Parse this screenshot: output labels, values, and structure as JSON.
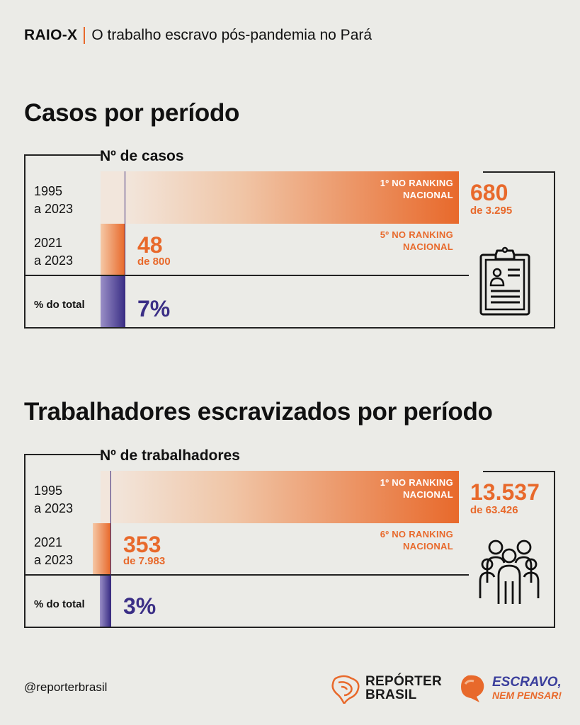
{
  "header": {
    "tag": "RAIO-X",
    "title": "O trabalho escravo pós-pandemia no Pará"
  },
  "colors": {
    "accent": "#e8692b",
    "purple": "#3b2f86",
    "background": "#ebebe7"
  },
  "sections": [
    {
      "title": "Casos por período",
      "axis_title": "Nº de casos",
      "icon": "clipboard-icon",
      "rows": [
        {
          "label_line1": "1995",
          "label_line2": "a 2023",
          "value": "680",
          "sub": "de 3.295",
          "rank_line1": "1º NO RANKING",
          "rank_line2": "NACIONAL"
        },
        {
          "label_line1": "2021",
          "label_line2": "a 2023",
          "value": "48",
          "sub": "de 800",
          "rank_line1": "5º NO RANKING",
          "rank_line2": "NACIONAL"
        }
      ],
      "pct_label": "% do total",
      "pct_value": "7%"
    },
    {
      "title": "Trabalhadores escravizados por período",
      "axis_title": "Nº de trabalhadores",
      "icon": "people-group-icon",
      "rows": [
        {
          "label_line1": "1995",
          "label_line2": "a 2023",
          "value": "13.537",
          "sub": "de 63.426",
          "rank_line1": "1º NO RANKING",
          "rank_line2": "NACIONAL"
        },
        {
          "label_line1": "2021",
          "label_line2": "a 2023",
          "value": "353",
          "sub": "de 7.983",
          "rank_line1": "6º NO RANKING",
          "rank_line2": "NACIONAL"
        }
      ],
      "pct_label": "% do total",
      "pct_value": "3%"
    }
  ],
  "chart_data": [
    {
      "type": "bar",
      "title": "Casos por período",
      "xlabel": "Nº de casos",
      "categories": [
        "1995 a 2023",
        "2021 a 2023"
      ],
      "values": [
        680,
        48
      ],
      "totals": [
        3295,
        800
      ],
      "ranks": [
        "1º NO RANKING NACIONAL",
        "5º NO RANKING NACIONAL"
      ],
      "percent_of_total": 7
    },
    {
      "type": "bar",
      "title": "Trabalhadores escravizados por período",
      "xlabel": "Nº de trabalhadores",
      "categories": [
        "1995 a 2023",
        "2021 a 2023"
      ],
      "values": [
        13537,
        353
      ],
      "totals": [
        63426,
        7983
      ],
      "ranks": [
        "1º NO RANKING NACIONAL",
        "6º NO RANKING NACIONAL"
      ],
      "percent_of_total": 3
    }
  ],
  "footer": {
    "handle": "@reporterbrasil",
    "logo1_line1": "REPÓRTER",
    "logo1_line2": "BRASIL",
    "logo2_line1": "ESCRAVO,",
    "logo2_line2": "NEM PENSAR!"
  }
}
